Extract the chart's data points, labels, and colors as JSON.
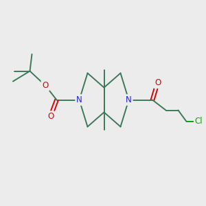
{
  "bg_color": "#ececec",
  "bond_color": "#3a7a5a",
  "N_color": "#2020dd",
  "O_color": "#dd0000",
  "Cl_color": "#00aa00",
  "bond_width": 1.4,
  "figsize": [
    3.0,
    3.0
  ],
  "dpi": 100,
  "xlim": [
    0,
    10
  ],
  "ylim": [
    0,
    10
  ]
}
